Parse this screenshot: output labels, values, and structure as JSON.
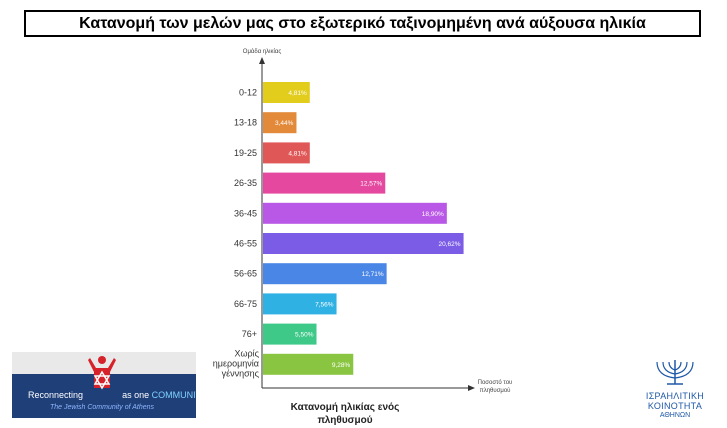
{
  "header": {
    "title": "Κατανομή των μελών μας στο εξωτερικό ταξινομημένη ανά αύξουσα ηλικία"
  },
  "chart_data": {
    "type": "bar",
    "orientation": "horizontal",
    "categories": [
      "0-12",
      "13-18",
      "19-25",
      "26-35",
      "36-45",
      "46-55",
      "56-65",
      "66-75",
      "76+",
      "Χωρίς ημερομηνία γέννησης"
    ],
    "values": [
      4.81,
      3.44,
      4.81,
      12.57,
      18.9,
      20.62,
      12.71,
      7.56,
      5.5,
      9.28
    ],
    "value_labels": [
      "4,81%",
      "3,44%",
      "4,81%",
      "12,57%",
      "18,90%",
      "20,62%",
      "12,71%",
      "7,56%",
      "5,50%",
      "9,28%"
    ],
    "colors": [
      "#e2cc1c",
      "#e3893a",
      "#e05757",
      "#e4489f",
      "#b957e6",
      "#7b5ce6",
      "#4a86e6",
      "#2fb1e3",
      "#3ec989",
      "#89c540"
    ],
    "title": "Κατανομή ηλικίας ενός πληθυσμού",
    "xlabel": "Ποσοστό του πληθυσμού",
    "ylabel": "Ομάδα ηλικίας",
    "xlim": [
      0,
      22
    ]
  },
  "left_banner": {
    "text_main": "Reconnecting",
    "text_mid": "as one",
    "text_accent": "COMMUNITY",
    "subtitle": "The Jewish Community of Athens"
  },
  "right_logo": {
    "line1": "ΙΣΡΑΗΛΙΤΙΚΗ",
    "line2": "ΚΟΙΝΟΤΗΤΑ",
    "line3": "ΑΘΗΝΩΝ"
  }
}
